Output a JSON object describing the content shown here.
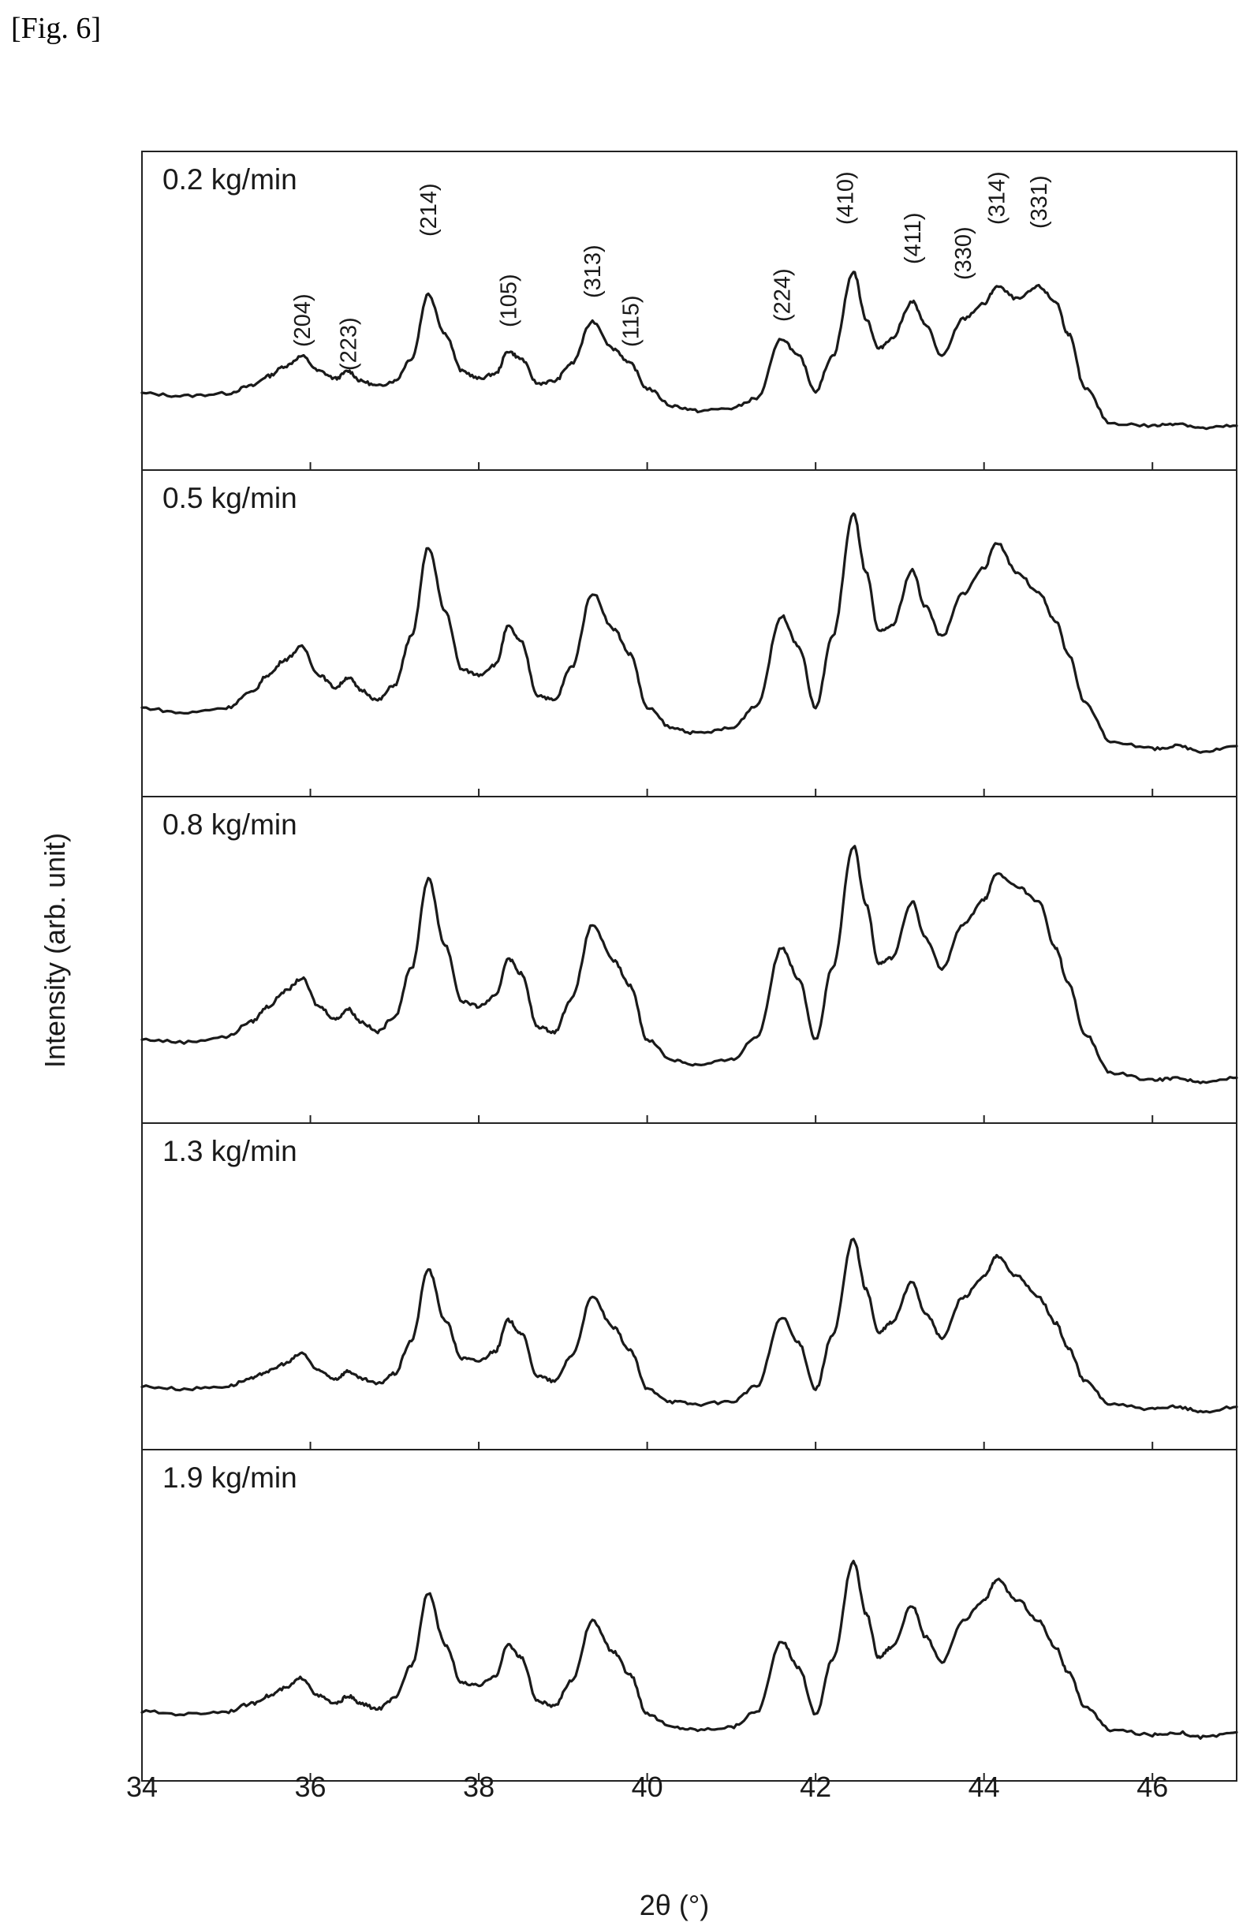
{
  "figure_label": "[Fig. 6]",
  "chart_data": {
    "type": "line",
    "layout": "stacked-panels",
    "xlabel": "2θ (°)",
    "ylabel": "Intensity (arb. unit)",
    "xlim": [
      34,
      47
    ],
    "xticks": [
      34,
      36,
      38,
      40,
      42,
      44,
      46
    ],
    "grid": false,
    "peak_labels": [
      {
        "label": "(204)",
        "x": 35.9
      },
      {
        "label": "(223)",
        "x": 36.45
      },
      {
        "label": "(214)",
        "x": 37.4
      },
      {
        "label": "(105)",
        "x": 38.35
      },
      {
        "label": "(313)",
        "x": 39.35
      },
      {
        "label": "(115)",
        "x": 39.8
      },
      {
        "label": "(224)",
        "x": 41.6
      },
      {
        "label": "(410)",
        "x": 42.35
      },
      {
        "label": "(411)",
        "x": 43.15
      },
      {
        "label": "(330)",
        "x": 43.75
      },
      {
        "label": "(314)",
        "x": 44.15
      },
      {
        "label": "(331)",
        "x": 44.65
      }
    ],
    "series": [
      {
        "name": "0.2 kg/min",
        "ylim": [
          0,
          1
        ],
        "x": [
          34.0,
          34.5,
          35.0,
          35.3,
          35.5,
          35.7,
          35.9,
          36.1,
          36.3,
          36.45,
          36.6,
          36.8,
          37.0,
          37.2,
          37.4,
          37.6,
          37.8,
          38.0,
          38.2,
          38.35,
          38.5,
          38.7,
          38.9,
          39.1,
          39.35,
          39.6,
          39.8,
          40.0,
          40.3,
          40.6,
          41.0,
          41.3,
          41.6,
          41.8,
          42.0,
          42.2,
          42.45,
          42.6,
          42.75,
          42.9,
          43.15,
          43.3,
          43.5,
          43.75,
          44.0,
          44.15,
          44.4,
          44.65,
          44.85,
          45.0,
          45.2,
          45.5,
          46.0,
          46.3,
          46.6,
          47.0
        ],
        "y": [
          0.18,
          0.17,
          0.18,
          0.21,
          0.25,
          0.29,
          0.33,
          0.27,
          0.24,
          0.27,
          0.23,
          0.21,
          0.23,
          0.32,
          0.58,
          0.42,
          0.27,
          0.24,
          0.26,
          0.35,
          0.32,
          0.22,
          0.23,
          0.3,
          0.47,
          0.36,
          0.3,
          0.2,
          0.13,
          0.11,
          0.12,
          0.16,
          0.4,
          0.33,
          0.19,
          0.33,
          0.67,
          0.48,
          0.36,
          0.4,
          0.55,
          0.46,
          0.33,
          0.48,
          0.54,
          0.61,
          0.56,
          0.61,
          0.55,
          0.42,
          0.2,
          0.06,
          0.05,
          0.06,
          0.04,
          0.05
        ]
      },
      {
        "name": "0.5 kg/min",
        "ylim": [
          0,
          1
        ],
        "x": [
          34.0,
          34.5,
          35.0,
          35.3,
          35.5,
          35.7,
          35.9,
          36.1,
          36.3,
          36.45,
          36.6,
          36.8,
          37.0,
          37.2,
          37.4,
          37.6,
          37.8,
          38.0,
          38.2,
          38.35,
          38.5,
          38.7,
          38.9,
          39.1,
          39.35,
          39.6,
          39.8,
          40.0,
          40.3,
          40.6,
          41.0,
          41.3,
          41.6,
          41.8,
          42.0,
          42.2,
          42.45,
          42.6,
          42.75,
          42.9,
          43.15,
          43.3,
          43.5,
          43.75,
          44.0,
          44.15,
          44.4,
          44.65,
          44.85,
          45.0,
          45.2,
          45.5,
          46.0,
          46.3,
          46.6,
          47.0
        ],
        "y": [
          0.22,
          0.2,
          0.22,
          0.28,
          0.35,
          0.41,
          0.46,
          0.35,
          0.3,
          0.34,
          0.29,
          0.25,
          0.31,
          0.5,
          0.85,
          0.6,
          0.37,
          0.35,
          0.39,
          0.54,
          0.48,
          0.27,
          0.25,
          0.38,
          0.67,
          0.53,
          0.43,
          0.22,
          0.14,
          0.12,
          0.14,
          0.23,
          0.58,
          0.46,
          0.22,
          0.5,
          0.98,
          0.75,
          0.52,
          0.54,
          0.76,
          0.62,
          0.5,
          0.67,
          0.77,
          0.87,
          0.75,
          0.67,
          0.56,
          0.43,
          0.24,
          0.09,
          0.06,
          0.07,
          0.05,
          0.07
        ]
      },
      {
        "name": "0.8 kg/min",
        "ylim": [
          0,
          1
        ],
        "x": [
          34.0,
          34.5,
          35.0,
          35.3,
          35.5,
          35.7,
          35.9,
          36.1,
          36.3,
          36.45,
          36.6,
          36.8,
          37.0,
          37.2,
          37.4,
          37.6,
          37.8,
          38.0,
          38.2,
          38.35,
          38.5,
          38.7,
          38.9,
          39.1,
          39.35,
          39.6,
          39.8,
          40.0,
          40.3,
          40.6,
          41.0,
          41.3,
          41.6,
          41.8,
          42.0,
          42.2,
          42.45,
          42.6,
          42.75,
          42.9,
          43.15,
          43.3,
          43.5,
          43.75,
          44.0,
          44.15,
          44.4,
          44.65,
          44.85,
          45.0,
          45.2,
          45.5,
          46.0,
          46.3,
          46.6,
          47.0
        ],
        "y": [
          0.2,
          0.19,
          0.21,
          0.27,
          0.33,
          0.39,
          0.44,
          0.33,
          0.28,
          0.32,
          0.27,
          0.23,
          0.29,
          0.48,
          0.83,
          0.57,
          0.35,
          0.33,
          0.37,
          0.52,
          0.46,
          0.25,
          0.23,
          0.36,
          0.65,
          0.51,
          0.41,
          0.2,
          0.12,
          0.1,
          0.12,
          0.21,
          0.56,
          0.44,
          0.2,
          0.48,
          0.96,
          0.73,
          0.5,
          0.52,
          0.74,
          0.6,
          0.48,
          0.65,
          0.75,
          0.85,
          0.8,
          0.74,
          0.56,
          0.42,
          0.22,
          0.07,
          0.04,
          0.05,
          0.03,
          0.05
        ]
      },
      {
        "name": "1.3 kg/min",
        "ylim": [
          0,
          1
        ],
        "x": [
          34.0,
          34.5,
          35.0,
          35.3,
          35.5,
          35.7,
          35.9,
          36.1,
          36.3,
          36.45,
          36.6,
          36.8,
          37.0,
          37.2,
          37.4,
          37.6,
          37.8,
          38.0,
          38.2,
          38.35,
          38.5,
          38.7,
          38.9,
          39.1,
          39.35,
          39.6,
          39.8,
          40.0,
          40.3,
          40.6,
          41.0,
          41.3,
          41.6,
          41.8,
          42.0,
          42.2,
          42.45,
          42.6,
          42.75,
          42.9,
          43.15,
          43.3,
          43.5,
          43.75,
          44.0,
          44.15,
          44.4,
          44.65,
          44.85,
          45.0,
          45.2,
          45.5,
          46.0,
          46.3,
          46.6,
          47.0
        ],
        "y": [
          0.12,
          0.11,
          0.12,
          0.15,
          0.18,
          0.21,
          0.25,
          0.18,
          0.15,
          0.18,
          0.15,
          0.13,
          0.17,
          0.3,
          0.58,
          0.38,
          0.23,
          0.22,
          0.26,
          0.38,
          0.33,
          0.16,
          0.14,
          0.24,
          0.47,
          0.35,
          0.26,
          0.11,
          0.06,
          0.05,
          0.06,
          0.12,
          0.39,
          0.29,
          0.11,
          0.32,
          0.7,
          0.5,
          0.33,
          0.37,
          0.53,
          0.41,
          0.31,
          0.47,
          0.55,
          0.63,
          0.55,
          0.47,
          0.37,
          0.27,
          0.14,
          0.05,
          0.03,
          0.04,
          0.02,
          0.04
        ]
      },
      {
        "name": "1.9 kg/min",
        "ylim": [
          0,
          1
        ],
        "x": [
          34.0,
          34.5,
          35.0,
          35.3,
          35.5,
          35.7,
          35.9,
          36.1,
          36.3,
          36.45,
          36.6,
          36.8,
          37.0,
          37.2,
          37.4,
          37.6,
          37.8,
          38.0,
          38.2,
          38.35,
          38.5,
          38.7,
          38.9,
          39.1,
          39.35,
          39.6,
          39.8,
          40.0,
          40.3,
          40.6,
          41.0,
          41.3,
          41.6,
          41.8,
          42.0,
          42.2,
          42.45,
          42.6,
          42.75,
          42.9,
          43.15,
          43.3,
          43.5,
          43.75,
          44.0,
          44.15,
          44.4,
          44.65,
          44.85,
          45.0,
          45.2,
          45.5,
          46.0,
          46.3,
          46.6,
          47.0
        ],
        "y": [
          0.14,
          0.13,
          0.14,
          0.17,
          0.2,
          0.23,
          0.27,
          0.2,
          0.17,
          0.2,
          0.17,
          0.15,
          0.19,
          0.32,
          0.6,
          0.4,
          0.25,
          0.24,
          0.28,
          0.4,
          0.35,
          0.18,
          0.16,
          0.26,
          0.49,
          0.37,
          0.28,
          0.13,
          0.08,
          0.07,
          0.08,
          0.14,
          0.41,
          0.31,
          0.13,
          0.34,
          0.72,
          0.52,
          0.35,
          0.39,
          0.55,
          0.43,
          0.33,
          0.49,
          0.57,
          0.65,
          0.57,
          0.49,
          0.39,
          0.29,
          0.16,
          0.07,
          0.05,
          0.06,
          0.04,
          0.06
        ]
      }
    ]
  }
}
